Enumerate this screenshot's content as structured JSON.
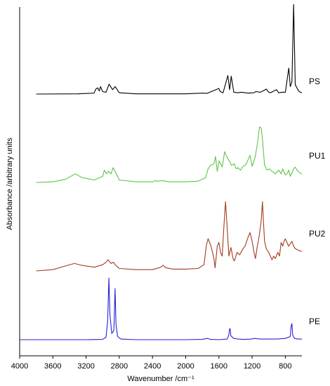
{
  "chart_data": {
    "type": "line",
    "title": "",
    "xlabel": "Wavenumber /cm⁻¹",
    "ylabel": "Absorbance /arbitrary units",
    "xlim": [
      4000,
      600
    ],
    "x_reversed": true,
    "x_ticks": [
      "4000",
      "3600",
      "3200",
      "2800",
      "2400",
      "2000",
      "1600",
      "1200",
      "800"
    ],
    "grid": false,
    "legend": "labels at right end of each stacked trace",
    "series": [
      {
        "name": "PS",
        "color": "#000000",
        "points": [
          [
            3800,
            0
          ],
          [
            3300,
            0.3
          ],
          [
            3105,
            1.5
          ],
          [
            3082,
            8
          ],
          [
            3060,
            10
          ],
          [
            3040,
            5
          ],
          [
            3026,
            12
          ],
          [
            3000,
            4
          ],
          [
            2960,
            3
          ],
          [
            2923,
            16
          ],
          [
            2880,
            7
          ],
          [
            2850,
            12
          ],
          [
            2800,
            2
          ],
          [
            2600,
            0.3
          ],
          [
            2000,
            0.3
          ],
          [
            1800,
            1.5
          ],
          [
            1745,
            1
          ],
          [
            1601,
            9
          ],
          [
            1583,
            4
          ],
          [
            1550,
            2
          ],
          [
            1492,
            30
          ],
          [
            1470,
            7
          ],
          [
            1452,
            29
          ],
          [
            1420,
            3
          ],
          [
            1370,
            2
          ],
          [
            1330,
            3
          ],
          [
            1250,
            1.5
          ],
          [
            1180,
            2
          ],
          [
            1155,
            4
          ],
          [
            1100,
            3
          ],
          [
            1070,
            5
          ],
          [
            1028,
            8
          ],
          [
            1000,
            3
          ],
          [
            980,
            2
          ],
          [
            906,
            7
          ],
          [
            880,
            2
          ],
          [
            842,
            3
          ],
          [
            800,
            3
          ],
          [
            758,
            42
          ],
          [
            740,
            12
          ],
          [
            720,
            20
          ],
          [
            700,
            145
          ],
          [
            680,
            15
          ],
          [
            640,
            5
          ],
          [
            620,
            3
          ],
          [
            600,
            2
          ]
        ]
      },
      {
        "name": "PU1",
        "color": "#5ec44a",
        "points": [
          [
            3800,
            0
          ],
          [
            3600,
            1
          ],
          [
            3450,
            5
          ],
          [
            3330,
            14
          ],
          [
            3250,
            8
          ],
          [
            3100,
            4
          ],
          [
            3000,
            10
          ],
          [
            2980,
            20
          ],
          [
            2955,
            14
          ],
          [
            2930,
            18
          ],
          [
            2900,
            14
          ],
          [
            2875,
            24
          ],
          [
            2850,
            18
          ],
          [
            2800,
            4
          ],
          [
            2600,
            1
          ],
          [
            2400,
            1
          ],
          [
            2365,
            3
          ],
          [
            2340,
            2
          ],
          [
            2280,
            3
          ],
          [
            2200,
            1
          ],
          [
            2000,
            1
          ],
          [
            1850,
            2
          ],
          [
            1760,
            8
          ],
          [
            1730,
            22
          ],
          [
            1700,
            28
          ],
          [
            1660,
            30
          ],
          [
            1640,
            42
          ],
          [
            1620,
            18
          ],
          [
            1597,
            35
          ],
          [
            1560,
            25
          ],
          [
            1530,
            50
          ],
          [
            1500,
            40
          ],
          [
            1470,
            34
          ],
          [
            1450,
            28
          ],
          [
            1415,
            30
          ],
          [
            1390,
            22
          ],
          [
            1370,
            24
          ],
          [
            1340,
            20
          ],
          [
            1310,
            26
          ],
          [
            1280,
            28
          ],
          [
            1250,
            36
          ],
          [
            1225,
            44
          ],
          [
            1200,
            26
          ],
          [
            1165,
            40
          ],
          [
            1140,
            60
          ],
          [
            1110,
            90
          ],
          [
            1090,
            88
          ],
          [
            1075,
            70
          ],
          [
            1050,
            28
          ],
          [
            1020,
            20
          ],
          [
            990,
            22
          ],
          [
            960,
            18
          ],
          [
            940,
            16
          ],
          [
            920,
            14
          ],
          [
            880,
            20
          ],
          [
            850,
            14
          ],
          [
            830,
            22
          ],
          [
            800,
            12
          ],
          [
            780,
            14
          ],
          [
            760,
            20
          ],
          [
            740,
            10
          ],
          [
            700,
            22
          ],
          [
            680,
            25
          ],
          [
            660,
            20
          ],
          [
            630,
            16
          ],
          [
            600,
            14
          ]
        ]
      },
      {
        "name": "PU2",
        "color": "#a33a1e",
        "points": [
          [
            3800,
            0
          ],
          [
            3600,
            2
          ],
          [
            3450,
            8
          ],
          [
            3340,
            12
          ],
          [
            3250,
            9
          ],
          [
            3100,
            6
          ],
          [
            3000,
            10
          ],
          [
            2960,
            14
          ],
          [
            2935,
            18
          ],
          [
            2900,
            12
          ],
          [
            2870,
            14
          ],
          [
            2850,
            10
          ],
          [
            2800,
            4
          ],
          [
            2600,
            2
          ],
          [
            2400,
            2
          ],
          [
            2300,
            6
          ],
          [
            2270,
            9
          ],
          [
            2240,
            5
          ],
          [
            2150,
            3
          ],
          [
            2000,
            3
          ],
          [
            1850,
            4
          ],
          [
            1780,
            10
          ],
          [
            1750,
            42
          ],
          [
            1730,
            52
          ],
          [
            1700,
            42
          ],
          [
            1680,
            32
          ],
          [
            1660,
            20
          ],
          [
            1645,
            5
          ],
          [
            1620,
            40
          ],
          [
            1600,
            46
          ],
          [
            1580,
            30
          ],
          [
            1560,
            24
          ],
          [
            1537,
            78
          ],
          [
            1520,
            112
          ],
          [
            1505,
            80
          ],
          [
            1480,
            24
          ],
          [
            1455,
            38
          ],
          [
            1430,
            20
          ],
          [
            1415,
            16
          ],
          [
            1380,
            30
          ],
          [
            1350,
            26
          ],
          [
            1310,
            36
          ],
          [
            1285,
            40
          ],
          [
            1250,
            54
          ],
          [
            1225,
            62
          ],
          [
            1200,
            48
          ],
          [
            1180,
            32
          ],
          [
            1160,
            20
          ],
          [
            1140,
            38
          ],
          [
            1115,
            56
          ],
          [
            1090,
            82
          ],
          [
            1075,
            112
          ],
          [
            1060,
            72
          ],
          [
            1050,
            48
          ],
          [
            1030,
            36
          ],
          [
            1000,
            30
          ],
          [
            960,
            18
          ],
          [
            940,
            24
          ],
          [
            920,
            20
          ],
          [
            890,
            30
          ],
          [
            870,
            24
          ],
          [
            850,
            46
          ],
          [
            830,
            40
          ],
          [
            815,
            48
          ],
          [
            800,
            52
          ],
          [
            780,
            46
          ],
          [
            760,
            40
          ],
          [
            740,
            44
          ],
          [
            720,
            48
          ],
          [
            700,
            40
          ],
          [
            680,
            36
          ],
          [
            650,
            34
          ],
          [
            620,
            32
          ],
          [
            600,
            32
          ]
        ]
      },
      {
        "name": "PE",
        "color": "#2b1fd6",
        "points": [
          [
            4000,
            0
          ],
          [
            3600,
            0
          ],
          [
            3200,
            0
          ],
          [
            3000,
            0.5
          ],
          [
            2960,
            4
          ],
          [
            2940,
            30
          ],
          [
            2925,
            100
          ],
          [
            2912,
            40
          ],
          [
            2890,
            10
          ],
          [
            2865,
            15
          ],
          [
            2851,
            83
          ],
          [
            2840,
            25
          ],
          [
            2820,
            5
          ],
          [
            2780,
            1
          ],
          [
            2600,
            0
          ],
          [
            2300,
            0
          ],
          [
            2000,
            0
          ],
          [
            1800,
            0.5
          ],
          [
            1740,
            2
          ],
          [
            1700,
            0.5
          ],
          [
            1600,
            0
          ],
          [
            1500,
            1
          ],
          [
            1480,
            8
          ],
          [
            1472,
            17
          ],
          [
            1465,
            18
          ],
          [
            1455,
            6
          ],
          [
            1420,
            2
          ],
          [
            1370,
            1
          ],
          [
            1300,
            0.5
          ],
          [
            1200,
            1
          ],
          [
            1180,
            2
          ],
          [
            1100,
            1
          ],
          [
            900,
            1
          ],
          [
            800,
            2
          ],
          [
            740,
            5
          ],
          [
            730,
            22
          ],
          [
            720,
            26
          ],
          [
            712,
            8
          ],
          [
            690,
            2
          ],
          [
            650,
            1
          ],
          [
            600,
            1
          ]
        ]
      }
    ]
  }
}
